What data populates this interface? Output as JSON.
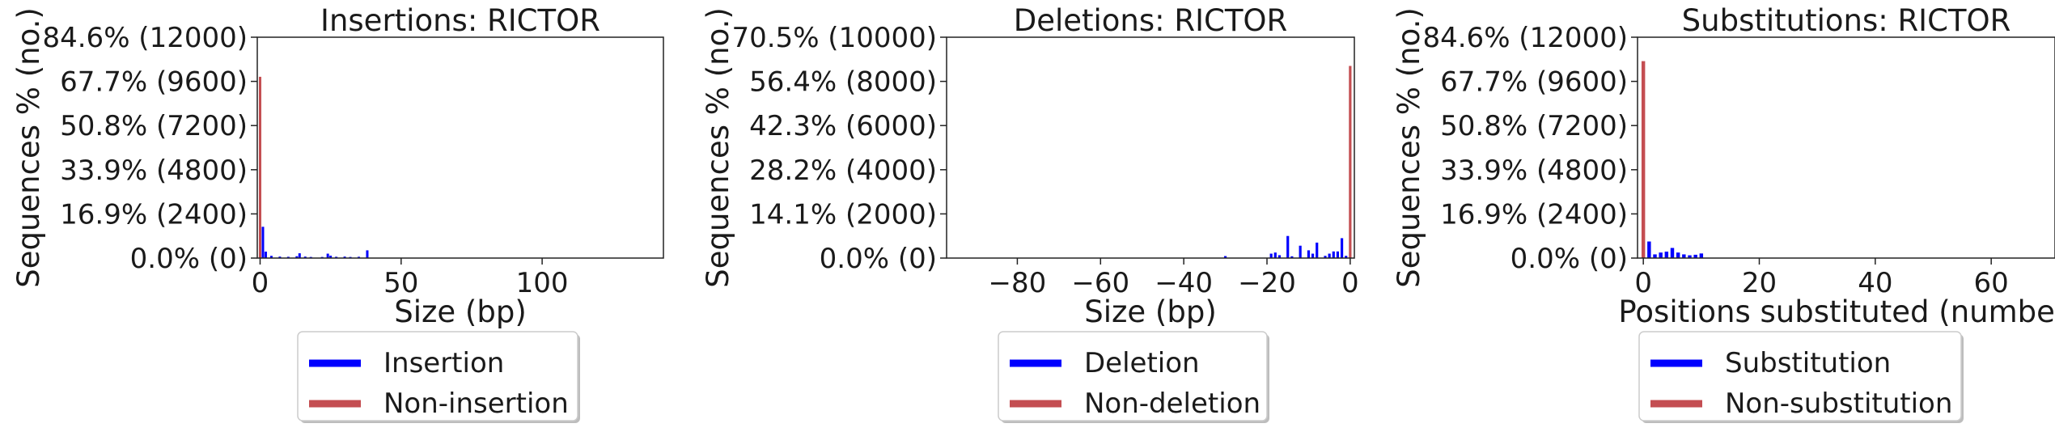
{
  "chart_data": [
    {
      "type": "bar",
      "title": "Insertions: RICTOR",
      "xlabel": "Size (bp)",
      "ylabel": "Sequences % (no.)",
      "xlim": [
        -1,
        143
      ],
      "ylim": [
        0,
        12000
      ],
      "xticks": [
        0,
        50,
        100
      ],
      "xtick_labels": [
        "0",
        "50",
        "100"
      ],
      "yticks": [
        0,
        2400,
        4800,
        7200,
        9600,
        12000
      ],
      "ytick_labels": [
        "0.0% (0)",
        "16.9% (2400)",
        "33.9% (4800)",
        "50.8% (7200)",
        "67.7% (9600)",
        "84.6% (12000)"
      ],
      "series": [
        {
          "name": "Insertion",
          "color": "#0000ff",
          "x": [
            1,
            2,
            4,
            7,
            10,
            13,
            14,
            16,
            18,
            22,
            24,
            25,
            27,
            30,
            32,
            35,
            38
          ],
          "values": [
            1700,
            350,
            120,
            80,
            70,
            100,
            260,
            80,
            60,
            60,
            240,
            130,
            70,
            80,
            60,
            70,
            420
          ]
        },
        {
          "name": "Non-insertion",
          "color": "#c44e52",
          "x": [
            0
          ],
          "values": [
            9850
          ]
        }
      ],
      "legend": {
        "position": "bottom",
        "entries": [
          "Insertion",
          "Non-insertion"
        ]
      }
    },
    {
      "type": "bar",
      "title": "Deletions: RICTOR",
      "xlabel": "Size (bp)",
      "ylabel": "Sequences % (no.)",
      "xlim": [
        -97,
        1
      ],
      "ylim": [
        0,
        10000
      ],
      "xticks": [
        -80,
        -60,
        -40,
        -20,
        0
      ],
      "xtick_labels": [
        "−80",
        "−60",
        "−40",
        "−20",
        "0"
      ],
      "yticks": [
        0,
        2000,
        4000,
        6000,
        8000,
        10000
      ],
      "ytick_labels": [
        "0.0% (0)",
        "14.1% (2000)",
        "28.2% (4000)",
        "42.3% (6000)",
        "56.4% (8000)",
        "70.5% (10000)"
      ],
      "series": [
        {
          "name": "Deletion",
          "color": "#0000ff",
          "x": [
            -30,
            -19,
            -18,
            -17,
            -15,
            -14,
            -12,
            -10,
            -9,
            -8,
            -6,
            -5,
            -4,
            -3,
            -2,
            -1
          ],
          "values": [
            90,
            200,
            250,
            130,
            1000,
            80,
            560,
            350,
            200,
            700,
            100,
            200,
            300,
            300,
            900,
            100
          ]
        },
        {
          "name": "Non-deletion",
          "color": "#c44e52",
          "x": [
            0
          ],
          "values": [
            8700
          ]
        }
      ],
      "legend": {
        "position": "bottom",
        "entries": [
          "Deletion",
          "Non-deletion"
        ]
      }
    },
    {
      "type": "bar",
      "title": "Substitutions: RICTOR",
      "xlabel": "Positions substituted (number)",
      "ylabel": "Sequences % (no.)",
      "xlim": [
        -1,
        71
      ],
      "ylim": [
        0,
        12000
      ],
      "xticks": [
        0,
        20,
        40,
        60
      ],
      "xtick_labels": [
        "0",
        "20",
        "40",
        "60"
      ],
      "yticks": [
        0,
        2400,
        4800,
        7200,
        9600,
        12000
      ],
      "ytick_labels": [
        "0.0% (0)",
        "16.9% (2400)",
        "33.9% (4800)",
        "50.8% (7200)",
        "67.7% (9600)",
        "84.6% (12000)"
      ],
      "series": [
        {
          "name": "Substitution",
          "color": "#0000ff",
          "x": [
            1,
            2,
            3,
            4,
            5,
            6,
            7,
            8,
            9,
            10
          ],
          "values": [
            900,
            200,
            300,
            350,
            550,
            300,
            200,
            150,
            180,
            250
          ]
        },
        {
          "name": "Non-substitution",
          "color": "#c44e52",
          "x": [
            0
          ],
          "values": [
            10700
          ]
        }
      ],
      "legend": {
        "position": "bottom",
        "entries": [
          "Substitution",
          "Non-substitution"
        ]
      }
    }
  ]
}
